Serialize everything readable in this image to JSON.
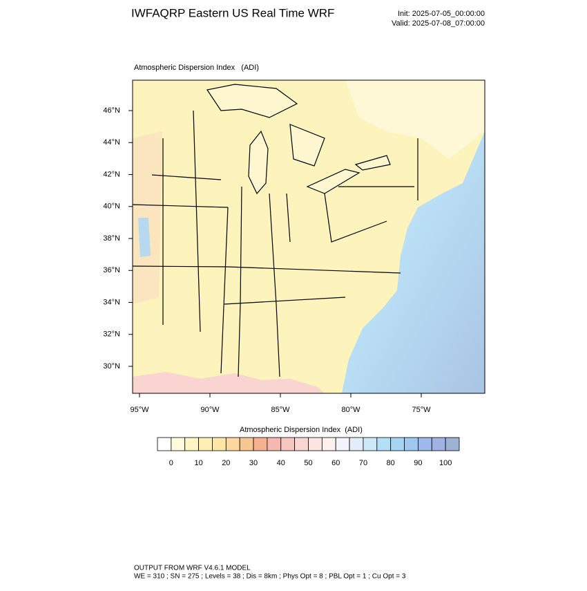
{
  "header": {
    "title": "IWFAQRP Eastern US Real Time WRF",
    "init": "Init: 2025-07-05_00:00:00",
    "valid": "Valid: 2025-07-08_07:00:00"
  },
  "map": {
    "label": "Atmospheric Dispersion Index   (ADI)",
    "lat_labels": [
      "46°N",
      "44°N",
      "42°N",
      "40°N",
      "38°N",
      "36°N",
      "34°N",
      "32°N",
      "30°N"
    ],
    "lon_labels": [
      "95°W",
      "90°W",
      "85°W",
      "80°W",
      "75°W"
    ]
  },
  "colorbar": {
    "title": "Atmospheric Dispersion Index  (ADI)",
    "colors": [
      "#ffffff",
      "#fffbdc",
      "#fff6c4",
      "#ffefb2",
      "#fde7a6",
      "#fcd7a0",
      "#f9c692",
      "#f6b28e",
      "#f4b8ae",
      "#f6c6c0",
      "#f9d6d2",
      "#fbe4e2",
      "#fdf0ef",
      "#f4f2fb",
      "#e4eefb",
      "#cde9f8",
      "#b3e0f6",
      "#a2d6f2",
      "#9fc8f1",
      "#9db9ec",
      "#a0b2e2",
      "#9db3d4"
    ],
    "ticks": [
      0,
      10,
      20,
      30,
      40,
      50,
      60,
      70,
      80,
      90,
      100
    ]
  },
  "footer": {
    "line1": "OUTPUT FROM WRF V4.6.1 MODEL",
    "line2": "WE = 310 ; SN = 275 ; Levels = 38 ; Dis = 8km ; Phys Opt = 8 ; PBL Opt = 1 ; Cu Opt = 3"
  }
}
